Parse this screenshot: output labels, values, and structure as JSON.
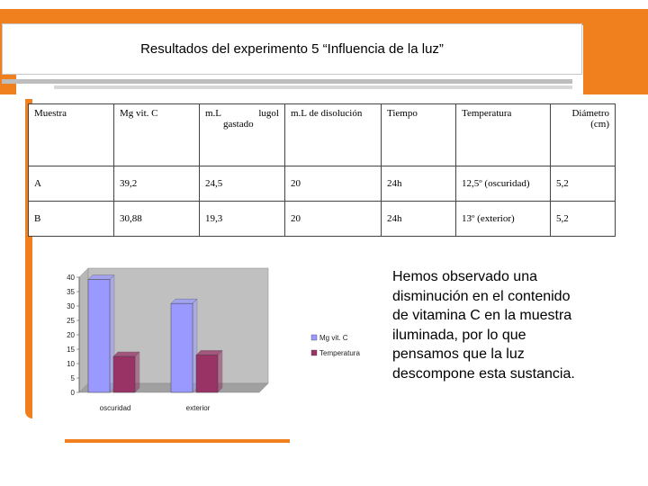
{
  "slide": {
    "title": "Resultados del experimento 5  “Influencia de la  luz”"
  },
  "table": {
    "headers": {
      "muestra": "Muestra",
      "mg_vit_c": "Mg vit. C",
      "ml_word": "m.L",
      "lugol_word": "lugol",
      "gastado_word": "gastado",
      "ml_disolucion": "m.L de disolución",
      "tiempo": "Tiempo",
      "temperatura": "Temperatura",
      "diametro": "Diámetro (cm)"
    },
    "rows": [
      {
        "muestra": "A",
        "mg_vit_c": "39,2",
        "ml_lugol": "24,5",
        "ml_disolucion": "20",
        "tiempo": "24h",
        "temperatura": "12,5º (oscuridad)",
        "diametro": "5,2"
      },
      {
        "muestra": "B",
        "mg_vit_c": "30,88",
        "ml_lugol": "19,3",
        "ml_disolucion": "20",
        "tiempo": "24h",
        "temperatura": "13º (exterior)",
        "diametro": "5,2"
      }
    ]
  },
  "chart_data": {
    "type": "bar",
    "categories": [
      "oscuridad",
      "exterior"
    ],
    "series": [
      {
        "name": "Mg vit. C",
        "values": [
          39.2,
          30.88
        ],
        "color": "#9999ff"
      },
      {
        "name": "Temperatura",
        "values": [
          12.5,
          13
        ],
        "color": "#993366"
      }
    ],
    "y_ticks": [
      "0",
      "5",
      "10",
      "15",
      "20",
      "25",
      "30",
      "35",
      "40"
    ],
    "ylim": [
      0,
      40
    ],
    "legend": "right",
    "grid": false
  },
  "note": {
    "text": "Hemos observado una disminución en el contenido de vitamina C en la muestra iluminada, por lo que pensamos que la luz descompone esta sustancia."
  },
  "colors": {
    "frame": "#f07f1e"
  }
}
